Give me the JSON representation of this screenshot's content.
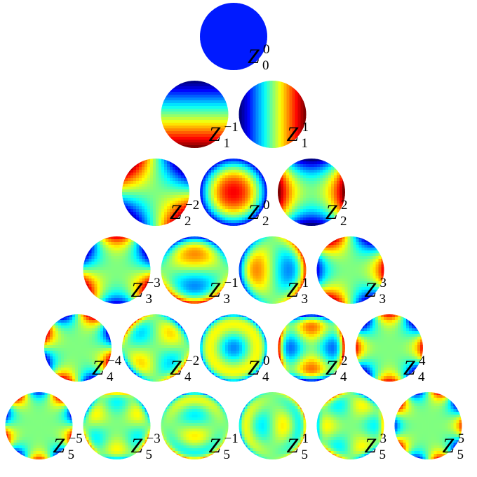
{
  "rows": [
    [
      {
        "symbol": "Z",
        "n": "0",
        "m": "0"
      }
    ],
    [
      {
        "symbol": "Z",
        "n": "1",
        "m": "−1"
      },
      {
        "symbol": "Z",
        "n": "1",
        "m": "1"
      }
    ],
    [
      {
        "symbol": "Z",
        "n": "2",
        "m": "−2"
      },
      {
        "symbol": "Z",
        "n": "2",
        "m": "0"
      },
      {
        "symbol": "Z",
        "n": "2",
        "m": "2"
      }
    ],
    [
      {
        "symbol": "Z",
        "n": "3",
        "m": "−3"
      },
      {
        "symbol": "Z",
        "n": "3",
        "m": "−1"
      },
      {
        "symbol": "Z",
        "n": "3",
        "m": "1"
      },
      {
        "symbol": "Z",
        "n": "3",
        "m": "3"
      }
    ],
    [
      {
        "symbol": "Z",
        "n": "4",
        "m": "−4"
      },
      {
        "symbol": "Z",
        "n": "4",
        "m": "−2"
      },
      {
        "symbol": "Z",
        "n": "4",
        "m": "0"
      },
      {
        "symbol": "Z",
        "n": "4",
        "m": "2"
      },
      {
        "symbol": "Z",
        "n": "4",
        "m": "4"
      }
    ],
    [
      {
        "symbol": "Z",
        "n": "5",
        "m": "−5"
      },
      {
        "symbol": "Z",
        "n": "5",
        "m": "−3"
      },
      {
        "symbol": "Z",
        "n": "5",
        "m": "−1"
      },
      {
        "symbol": "Z",
        "n": "5",
        "m": "1"
      },
      {
        "symbol": "Z",
        "n": "5",
        "m": "3"
      },
      {
        "symbol": "Z",
        "n": "5",
        "m": "5"
      }
    ]
  ]
}
